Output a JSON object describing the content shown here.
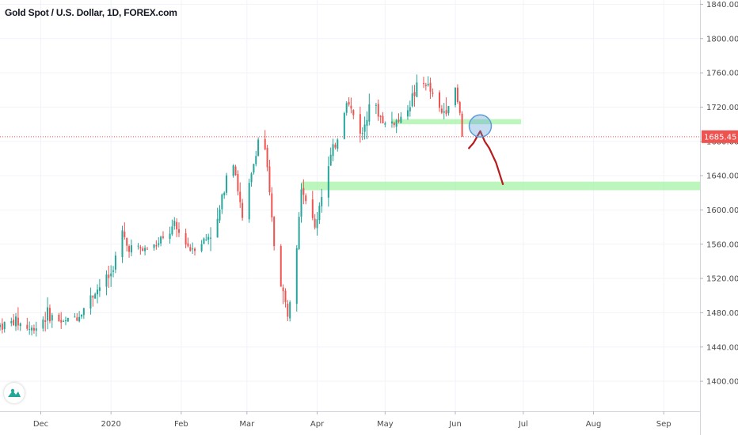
{
  "header": {
    "title": "Gold Spot / U.S. Dollar, 1D, FOREX.com"
  },
  "colors": {
    "up": "#26a69a",
    "down": "#ef5350",
    "zone": "#a5f3a5",
    "drawing": "#b71c1c",
    "circle": "#5c9bd6",
    "price_line": "#ef5350",
    "grid": "#f0f3fa"
  },
  "icons": {
    "logo": "tradingview-logo-icon"
  },
  "chart_data": {
    "type": "candlestick",
    "title": "Gold Spot / U.S. Dollar, 1D, FOREX.com",
    "ylim": [
      1365,
      1845
    ],
    "y_ticks": [
      1840,
      1800,
      1760,
      1720,
      1680,
      1640,
      1600,
      1560,
      1520,
      1480,
      1440,
      1400
    ],
    "y_tick_labels": [
      "1840.00",
      "1800.00",
      "1760.00",
      "1720.00",
      "1680.00",
      "1640.00",
      "1600.00",
      "1560.00",
      "1520.00",
      "1480.00",
      "1440.00",
      "1400.00"
    ],
    "x_ticks": [
      {
        "label": "Dec",
        "date": "2019-12-01"
      },
      {
        "label": "2020",
        "date": "2020-01-01"
      },
      {
        "label": "Feb",
        "date": "2020-02-01"
      },
      {
        "label": "Mar",
        "date": "2020-03-01"
      },
      {
        "label": "Apr",
        "date": "2020-04-01"
      },
      {
        "label": "May",
        "date": "2020-05-01"
      },
      {
        "label": "Jun",
        "date": "2020-06-01"
      },
      {
        "label": "Jul",
        "date": "2020-07-01"
      },
      {
        "label": "Aug",
        "date": "2020-08-01"
      },
      {
        "label": "Sep",
        "date": "2020-09-01"
      }
    ],
    "xlim": [
      "2019-11-13",
      "2020-09-17"
    ],
    "last_price": 1685.45,
    "last_price_label": "1685.45",
    "grid": true,
    "series": [
      {
        "name": "",
        "close_points": [
          [
            "2019-11-13",
            1465
          ],
          [
            "2019-11-20",
            1470
          ],
          [
            "2019-11-27",
            1460
          ],
          [
            "2019-12-04",
            1478
          ],
          [
            "2019-12-11",
            1468
          ],
          [
            "2019-12-18",
            1478
          ],
          [
            "2019-12-25",
            1505
          ],
          [
            "2020-01-01",
            1525
          ],
          [
            "2020-01-06",
            1572
          ],
          [
            "2020-01-08",
            1558
          ],
          [
            "2020-01-15",
            1553
          ],
          [
            "2020-01-22",
            1560
          ],
          [
            "2020-01-29",
            1580
          ],
          [
            "2020-02-05",
            1555
          ],
          [
            "2020-02-12",
            1566
          ],
          [
            "2020-02-17",
            1585
          ],
          [
            "2020-02-21",
            1642
          ],
          [
            "2020-02-24",
            1660
          ],
          [
            "2020-02-28",
            1588
          ],
          [
            "2020-03-03",
            1640
          ],
          [
            "2020-03-06",
            1682
          ],
          [
            "2020-03-09",
            1672
          ],
          [
            "2020-03-13",
            1560
          ],
          [
            "2020-03-16",
            1515
          ],
          [
            "2020-03-19",
            1478
          ],
          [
            "2020-03-23",
            1565
          ],
          [
            "2020-03-25",
            1630
          ],
          [
            "2020-03-31",
            1578
          ],
          [
            "2020-04-03",
            1620
          ],
          [
            "2020-04-07",
            1660
          ],
          [
            "2020-04-10",
            1685
          ],
          [
            "2020-04-14",
            1728
          ],
          [
            "2020-04-21",
            1688
          ],
          [
            "2020-04-24",
            1728
          ],
          [
            "2020-05-01",
            1700
          ],
          [
            "2020-05-08",
            1705
          ],
          [
            "2020-05-15",
            1742
          ],
          [
            "2020-05-19",
            1748
          ],
          [
            "2020-05-26",
            1712
          ],
          [
            "2020-06-01",
            1738
          ],
          [
            "2020-06-05",
            1685
          ]
        ]
      }
    ],
    "zones": [
      {
        "name": "",
        "y_range": [
          1700,
          1706
        ],
        "x_range": [
          "2020-05-04",
          "2020-06-30"
        ]
      },
      {
        "name": "",
        "y_range": [
          1623,
          1633
        ],
        "x_range": [
          "2020-03-25",
          "2020-09-17"
        ]
      }
    ],
    "drawing_path": [
      [
        "2020-06-07",
        1672
      ],
      [
        "2020-06-09",
        1678
      ],
      [
        "2020-06-12",
        1692
      ],
      [
        "2020-06-14",
        1680
      ],
      [
        "2020-06-16",
        1672
      ],
      [
        "2020-06-19",
        1655
      ],
      [
        "2020-06-22",
        1630
      ]
    ],
    "circle_marker": {
      "date": "2020-06-12",
      "price": 1698
    }
  }
}
